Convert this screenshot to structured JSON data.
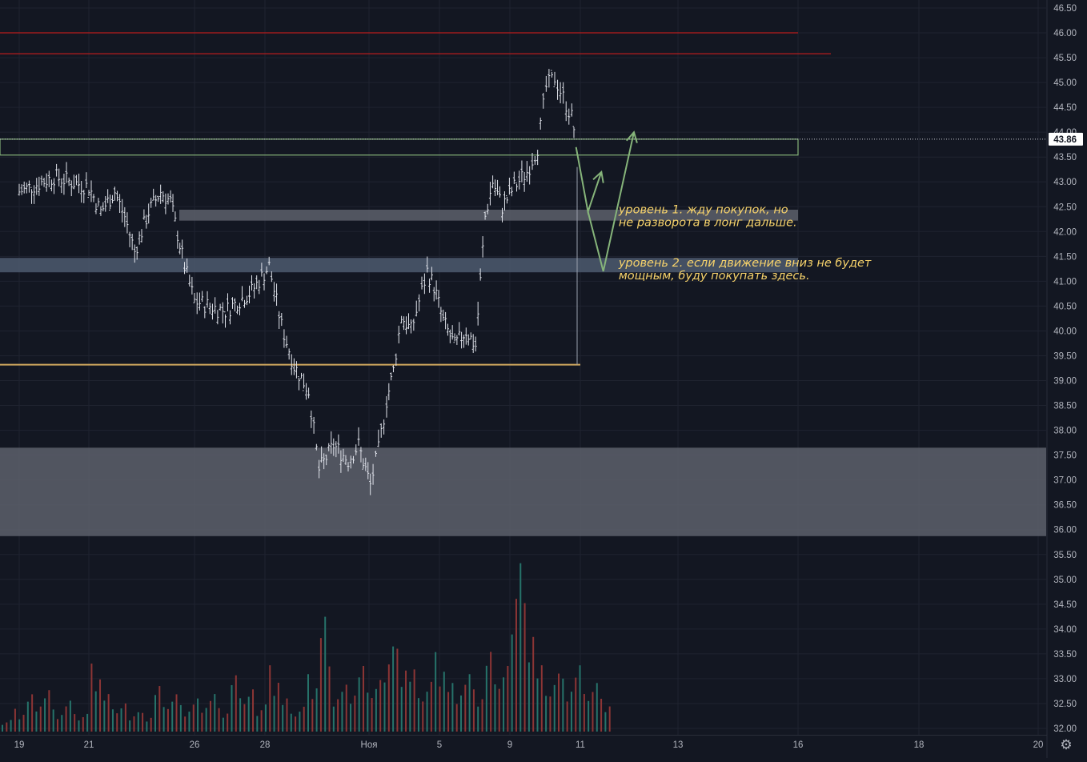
{
  "chart_data": {
    "type": "bar",
    "style": "ohlc",
    "x_tick_labels": [
      "19",
      "21",
      "26",
      "28",
      "Ноя",
      "5",
      "9",
      "11",
      "13",
      "16",
      "18",
      "20"
    ],
    "y_tick_labels": [
      "46.50",
      "46.00",
      "45.50",
      "45.00",
      "44.50",
      "44.00",
      "43.50",
      "43.00",
      "42.50",
      "42.00",
      "41.50",
      "41.00",
      "40.50",
      "40.00",
      "39.50",
      "39.00",
      "38.50",
      "38.00",
      "37.50",
      "37.00",
      "36.50",
      "36.00",
      "35.50",
      "35.00",
      "34.50",
      "34.00",
      "33.50",
      "33.00",
      "32.50",
      "32.00"
    ],
    "ylim": [
      31.95,
      46.65
    ],
    "last_price": "43.86",
    "grid": true,
    "price_path": [
      [
        19,
        42.8
      ],
      [
        19.6,
        43.1
      ],
      [
        20.2,
        42.9
      ],
      [
        20.8,
        42.4
      ],
      [
        21.5,
        42.8
      ],
      [
        22,
        42.3
      ],
      [
        22.5,
        41.6
      ],
      [
        23.2,
        42.4
      ],
      [
        23.8,
        42.8
      ],
      [
        24.3,
        42.6
      ],
      [
        25,
        41.3
      ],
      [
        25.5,
        40.6
      ],
      [
        26.2,
        40.4
      ],
      [
        26.8,
        40.8
      ],
      [
        27.3,
        41.3
      ],
      [
        27.9,
        40.1
      ],
      [
        28.5,
        39.3
      ],
      [
        29.2,
        38.8
      ],
      [
        29.7,
        37.2
      ],
      [
        30.4,
        37.7
      ],
      [
        31.1,
        37.4
      ],
      [
        31.6,
        37.7
      ],
      [
        32.2,
        36.9
      ],
      [
        32.8,
        37.6
      ],
      [
        33.4,
        38.6
      ],
      [
        33.9,
        39.2
      ],
      [
        34.5,
        40.3
      ],
      [
        35.2,
        40.0
      ],
      [
        35.8,
        40.6
      ],
      [
        36.4,
        41.2
      ],
      [
        36.9,
        40.9
      ],
      [
        37.5,
        40.2
      ],
      [
        38.1,
        39.7
      ],
      [
        38.7,
        40.0
      ],
      [
        39.2,
        39.7
      ],
      [
        39.7,
        42.3
      ],
      [
        40.1,
        43.0
      ],
      [
        40.6,
        42.5
      ],
      [
        41.2,
        42.9
      ],
      [
        41.8,
        43.2
      ],
      [
        42.3,
        43.7
      ],
      [
        42.7,
        44.9
      ],
      [
        43.1,
        45.1
      ],
      [
        43.5,
        44.7
      ],
      [
        43.9,
        44.3
      ],
      [
        44.1,
        43.86
      ]
    ],
    "volumes": [
      {
        "up": true,
        "v": 0.3
      },
      {
        "up": false,
        "v": 0.55
      },
      {
        "up": true,
        "v": 0.9
      },
      {
        "up": false,
        "v": 1.0
      },
      {
        "up": true,
        "v": 0.5
      },
      {
        "up": false,
        "v": 0.7
      },
      {
        "up": true,
        "v": 0.4
      },
      {
        "up": false,
        "v": 1.45
      },
      {
        "up": true,
        "v": 0.8
      },
      {
        "up": false,
        "v": 0.6
      },
      {
        "up": true,
        "v": 0.5
      },
      {
        "up": false,
        "v": 0.45
      },
      {
        "up": true,
        "v": 1.1
      },
      {
        "up": false,
        "v": 0.9
      },
      {
        "up": true,
        "v": 0.6
      },
      {
        "up": false,
        "v": 0.75
      },
      {
        "up": true,
        "v": 0.85
      },
      {
        "up": false,
        "v": 0.5
      },
      {
        "up": true,
        "v": 1.2
      },
      {
        "up": false,
        "v": 0.9
      },
      {
        "up": true,
        "v": 0.7
      },
      {
        "up": false,
        "v": 1.6
      },
      {
        "up": true,
        "v": 0.8
      },
      {
        "up": false,
        "v": 0.6
      },
      {
        "up": true,
        "v": 1.3
      },
      {
        "up": false,
        "v": 2.6
      },
      {
        "up": true,
        "v": 0.9
      },
      {
        "up": false,
        "v": 1.0
      },
      {
        "up": true,
        "v": 1.4
      },
      {
        "up": false,
        "v": 1.1
      },
      {
        "up": true,
        "v": 2.2
      },
      {
        "up": false,
        "v": 2.0
      },
      {
        "up": true,
        "v": 1.5
      },
      {
        "up": false,
        "v": 1.2
      },
      {
        "up": true,
        "v": 1.8
      },
      {
        "up": false,
        "v": 1.1
      },
      {
        "up": true,
        "v": 1.3
      },
      {
        "up": false,
        "v": 0.9
      },
      {
        "up": true,
        "v": 1.7
      },
      {
        "up": false,
        "v": 1.4
      },
      {
        "up": true,
        "v": 4.35
      },
      {
        "up": false,
        "v": 3.1
      },
      {
        "up": true,
        "v": 1.6
      },
      {
        "up": false,
        "v": 1.4
      },
      {
        "up": true,
        "v": 1.2
      },
      {
        "up": false,
        "v": 1.5
      },
      {
        "up": true,
        "v": 1.1
      },
      {
        "up": false,
        "v": 0.7
      }
    ],
    "horizontal_lines": [
      {
        "price": 46.0,
        "x_to": 16.0,
        "color": "#b71c1c"
      },
      {
        "price": 45.58,
        "x_to": 17.1,
        "color": "#b71c1c"
      },
      {
        "price": 39.32,
        "x_to": 11.0,
        "color": "#d1a85e"
      }
    ],
    "zones": [
      {
        "low": 43.54,
        "high": 43.86,
        "x_to": 16.0,
        "fill": "none",
        "stroke": "#86b47a"
      },
      {
        "low": 42.22,
        "high": 42.44,
        "x_from": 21.5,
        "x_to": 16.0,
        "fill": "#5d606b",
        "stroke": "none"
      },
      {
        "low": 41.18,
        "high": 41.47,
        "x_to": 16.0,
        "fill": "#4e5a6e",
        "stroke": "none"
      },
      {
        "low": 35.87,
        "high": 37.65,
        "x_to": 20.2,
        "fill": "#5d606b",
        "stroke": "none"
      }
    ],
    "arrow_paths": [
      [
        [
          44.1,
          43.7
        ],
        [
          44.7,
          42.4
        ],
        [
          45.4,
          43.2
        ]
      ],
      [
        [
          44.7,
          42.4
        ],
        [
          45.5,
          41.2
        ],
        [
          47.1,
          44.0
        ]
      ]
    ],
    "annotations": [
      {
        "x": 46.3,
        "y": 42.45,
        "lines": [
          "уровень 1. жду покупок, но",
          "не разворота в лонг дальше."
        ]
      },
      {
        "x": 46.3,
        "y": 41.38,
        "lines": [
          "уровень 2. если движение вниз не будет",
          "мощным, буду покупать здесь."
        ]
      }
    ],
    "colors": {
      "background": "#131722",
      "grid": "#1f2330",
      "up_volume": "#26736a",
      "down_volume": "#8c3535",
      "bars": "#e0e3eb",
      "axis_text": "#b2b5be",
      "last_price_bg": "#ffffff",
      "arrows": "#86b47a",
      "annotation": "#f7d36b"
    }
  },
  "ui": {
    "settings_icon": "gear-icon",
    "settings_glyph": "⚙"
  }
}
